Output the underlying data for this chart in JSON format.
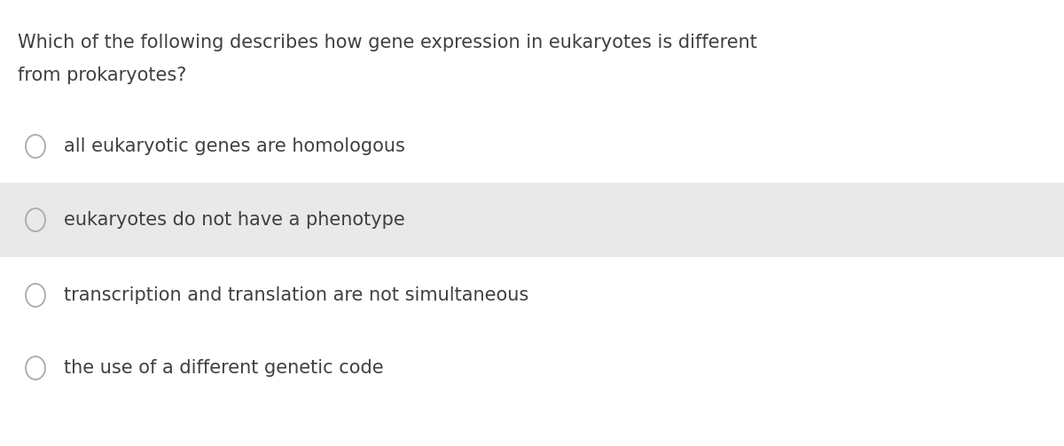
{
  "question_line1": "Which of the following describes how gene expression in eukaryotes is different",
  "question_line2": "from prokaryotes?",
  "options": [
    "all eukaryotic genes are homologous",
    "eukaryotes do not have a phenotype",
    "transcription and translation are not simultaneous",
    "the use of a different genetic code"
  ],
  "highlighted_option": 1,
  "background_color": "#ffffff",
  "highlight_color": "#e9e9e9",
  "text_color": "#404040",
  "circle_edge_color": "#aaaaaa",
  "question_fontsize": 15.0,
  "option_fontsize": 15.0,
  "fig_width": 12.0,
  "fig_height": 5.03
}
